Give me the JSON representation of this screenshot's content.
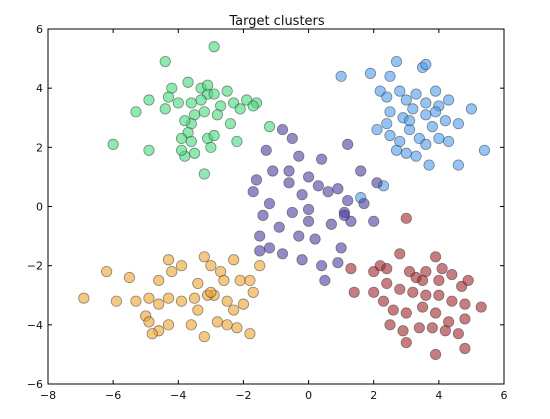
{
  "chart_data": {
    "type": "scatter",
    "title": "Target clusters",
    "xlabel": "",
    "ylabel": "",
    "xlim": [
      -8,
      6
    ],
    "ylim": [
      -6,
      6
    ],
    "xticks": [
      -8,
      -6,
      -4,
      -2,
      0,
      2,
      4,
      6
    ],
    "yticks": [
      -6,
      -4,
      -2,
      0,
      2,
      4,
      6
    ],
    "grid": false,
    "legend": "none",
    "series": [
      {
        "color": "#3fdc7a",
        "points": [
          [
            -4.4,
            4.9
          ],
          [
            -2.9,
            5.4
          ],
          [
            -4.9,
            3.6
          ],
          [
            -5.3,
            3.2
          ],
          [
            -4.2,
            4.0
          ],
          [
            -3.7,
            4.2
          ],
          [
            -3.6,
            3.5
          ],
          [
            -3.3,
            4.0
          ],
          [
            -3.1,
            3.8
          ],
          [
            -3.1,
            4.1
          ],
          [
            -2.9,
            3.8
          ],
          [
            -2.7,
            3.4
          ],
          [
            -2.5,
            3.9
          ],
          [
            -2.3,
            3.5
          ],
          [
            -2.1,
            3.3
          ],
          [
            -1.9,
            3.6
          ],
          [
            -1.6,
            3.5
          ],
          [
            -1.7,
            3.4
          ],
          [
            -3.5,
            3.1
          ],
          [
            -3.2,
            3.2
          ],
          [
            -3.6,
            2.8
          ],
          [
            -3.7,
            2.5
          ],
          [
            -3.9,
            2.3
          ],
          [
            -3.6,
            2.2
          ],
          [
            -3.1,
            2.3
          ],
          [
            -2.9,
            2.4
          ],
          [
            -3.0,
            2.0
          ],
          [
            -3.5,
            1.8
          ],
          [
            -3.8,
            1.7
          ],
          [
            -3.9,
            1.9
          ],
          [
            -4.9,
            1.9
          ],
          [
            -6.0,
            2.1
          ],
          [
            -4.4,
            3.3
          ],
          [
            -3.8,
            2.9
          ],
          [
            -2.4,
            2.8
          ],
          [
            -2.2,
            2.2
          ],
          [
            -1.2,
            2.7
          ],
          [
            -3.2,
            1.1
          ],
          [
            -4.3,
            3.7
          ],
          [
            -2.8,
            3.1
          ],
          [
            -4.0,
            3.5
          ],
          [
            -3.3,
            3.6
          ]
        ]
      },
      {
        "color": "#4a9df0",
        "points": [
          [
            1.0,
            4.4
          ],
          [
            1.9,
            4.5
          ],
          [
            2.5,
            4.4
          ],
          [
            2.7,
            4.9
          ],
          [
            3.5,
            4.7
          ],
          [
            3.6,
            4.8
          ],
          [
            2.2,
            3.9
          ],
          [
            2.4,
            3.7
          ],
          [
            2.8,
            3.9
          ],
          [
            3.0,
            3.6
          ],
          [
            3.3,
            3.8
          ],
          [
            3.6,
            3.5
          ],
          [
            3.9,
            3.9
          ],
          [
            4.0,
            3.4
          ],
          [
            4.3,
            3.6
          ],
          [
            2.5,
            3.2
          ],
          [
            2.9,
            3.0
          ],
          [
            3.2,
            3.3
          ],
          [
            3.6,
            3.1
          ],
          [
            3.9,
            3.2
          ],
          [
            4.2,
            2.9
          ],
          [
            2.1,
            2.6
          ],
          [
            2.5,
            2.4
          ],
          [
            2.8,
            2.2
          ],
          [
            3.1,
            2.6
          ],
          [
            3.4,
            2.3
          ],
          [
            3.6,
            2.1
          ],
          [
            3.8,
            2.7
          ],
          [
            4.0,
            2.3
          ],
          [
            4.3,
            2.2
          ],
          [
            2.7,
            1.9
          ],
          [
            3.0,
            1.8
          ],
          [
            3.3,
            1.7
          ],
          [
            4.6,
            2.8
          ],
          [
            5.0,
            3.3
          ],
          [
            5.4,
            1.9
          ],
          [
            4.6,
            1.4
          ],
          [
            3.7,
            1.4
          ],
          [
            2.3,
            0.7
          ],
          [
            1.6,
            0.3
          ],
          [
            2.4,
            2.8
          ],
          [
            3.1,
            2.9
          ]
        ]
      },
      {
        "color": "#4b3da3",
        "points": [
          [
            -0.8,
            2.6
          ],
          [
            -0.5,
            2.3
          ],
          [
            -0.3,
            1.7
          ],
          [
            -1.3,
            1.9
          ],
          [
            -1.1,
            1.2
          ],
          [
            -0.6,
            1.2
          ],
          [
            0.0,
            1.0
          ],
          [
            0.4,
            1.6
          ],
          [
            1.2,
            2.1
          ],
          [
            1.6,
            1.2
          ],
          [
            2.1,
            0.8
          ],
          [
            0.9,
            0.6
          ],
          [
            -0.2,
            0.4
          ],
          [
            0.6,
            0.5
          ],
          [
            1.2,
            0.2
          ],
          [
            1.7,
            0.1
          ],
          [
            -1.7,
            0.5
          ],
          [
            -1.2,
            0.1
          ],
          [
            -0.5,
            -0.2
          ],
          [
            0.0,
            -0.5
          ],
          [
            0.7,
            -0.6
          ],
          [
            1.3,
            -0.5
          ],
          [
            -1.4,
            -0.3
          ],
          [
            -0.9,
            -0.7
          ],
          [
            -0.3,
            -1.0
          ],
          [
            0.2,
            -1.1
          ],
          [
            1.0,
            -1.4
          ],
          [
            -1.5,
            -1.0
          ],
          [
            -1.2,
            -1.4
          ],
          [
            -0.8,
            -1.6
          ],
          [
            -0.2,
            -1.8
          ],
          [
            0.4,
            -2.0
          ],
          [
            0.9,
            -1.9
          ],
          [
            -1.5,
            -1.5
          ],
          [
            0.0,
            -0.1
          ],
          [
            0.3,
            0.7
          ],
          [
            -0.6,
            0.8
          ],
          [
            1.1,
            -0.2
          ],
          [
            -1.6,
            0.9
          ],
          [
            1.1,
            -0.3
          ],
          [
            0.5,
            -2.5
          ],
          [
            2.0,
            -0.5
          ]
        ]
      },
      {
        "color": "#f0a429",
        "points": [
          [
            -6.2,
            -2.2
          ],
          [
            -5.5,
            -2.4
          ],
          [
            -5.9,
            -3.2
          ],
          [
            -4.9,
            -3.1
          ],
          [
            -4.6,
            -2.5
          ],
          [
            -4.3,
            -1.8
          ],
          [
            -4.2,
            -2.2
          ],
          [
            -3.9,
            -2.0
          ],
          [
            -3.4,
            -2.6
          ],
          [
            -3.2,
            -1.7
          ],
          [
            -3.0,
            -2.0
          ],
          [
            -2.7,
            -2.2
          ],
          [
            -2.3,
            -1.8
          ],
          [
            -2.1,
            -2.5
          ],
          [
            -1.8,
            -2.5
          ],
          [
            -2.0,
            -3.3
          ],
          [
            -1.7,
            -2.9
          ],
          [
            -2.5,
            -3.2
          ],
          [
            -2.9,
            -3.0
          ],
          [
            -3.1,
            -3.0
          ],
          [
            -3.4,
            -3.5
          ],
          [
            -3.9,
            -3.2
          ],
          [
            -4.3,
            -3.1
          ],
          [
            -4.6,
            -3.3
          ],
          [
            -5.0,
            -3.7
          ],
          [
            -5.3,
            -3.2
          ],
          [
            -4.9,
            -3.9
          ],
          [
            -4.6,
            -4.2
          ],
          [
            -4.3,
            -4.0
          ],
          [
            -3.6,
            -4.0
          ],
          [
            -3.2,
            -4.4
          ],
          [
            -2.8,
            -3.9
          ],
          [
            -2.5,
            -4.0
          ],
          [
            -2.2,
            -4.1
          ],
          [
            -1.8,
            -4.3
          ],
          [
            -4.8,
            -4.3
          ],
          [
            -3.0,
            -2.9
          ],
          [
            -2.6,
            -2.5
          ],
          [
            -1.5,
            -2.0
          ],
          [
            -6.9,
            -3.1
          ],
          [
            -2.3,
            -3.5
          ],
          [
            -3.5,
            -3.1
          ]
        ]
      },
      {
        "color": "#a3242a",
        "points": [
          [
            1.3,
            -2.1
          ],
          [
            2.0,
            -2.2
          ],
          [
            2.2,
            -2.0
          ],
          [
            2.4,
            -2.1
          ],
          [
            2.8,
            -1.6
          ],
          [
            3.1,
            -2.2
          ],
          [
            3.3,
            -2.4
          ],
          [
            3.6,
            -2.2
          ],
          [
            3.9,
            -1.7
          ],
          [
            4.1,
            -2.1
          ],
          [
            4.4,
            -2.3
          ],
          [
            4.7,
            -2.7
          ],
          [
            4.9,
            -2.5
          ],
          [
            2.4,
            -2.6
          ],
          [
            2.8,
            -2.8
          ],
          [
            3.2,
            -2.9
          ],
          [
            3.6,
            -3.0
          ],
          [
            4.0,
            -3.0
          ],
          [
            4.4,
            -3.2
          ],
          [
            4.8,
            -3.3
          ],
          [
            2.3,
            -3.2
          ],
          [
            2.6,
            -3.5
          ],
          [
            3.0,
            -3.6
          ],
          [
            3.5,
            -3.4
          ],
          [
            3.9,
            -3.6
          ],
          [
            4.3,
            -3.9
          ],
          [
            4.8,
            -3.8
          ],
          [
            2.5,
            -4.0
          ],
          [
            2.9,
            -4.2
          ],
          [
            3.4,
            -4.1
          ],
          [
            3.8,
            -4.1
          ],
          [
            4.2,
            -4.2
          ],
          [
            4.6,
            -4.3
          ],
          [
            3.0,
            -4.6
          ],
          [
            3.9,
            -5.0
          ],
          [
            4.8,
            -4.8
          ],
          [
            5.3,
            -3.4
          ],
          [
            3.5,
            -2.5
          ],
          [
            4.0,
            -2.5
          ],
          [
            2.0,
            -2.9
          ],
          [
            1.4,
            -2.9
          ],
          [
            3.0,
            -0.4
          ]
        ]
      }
    ]
  }
}
